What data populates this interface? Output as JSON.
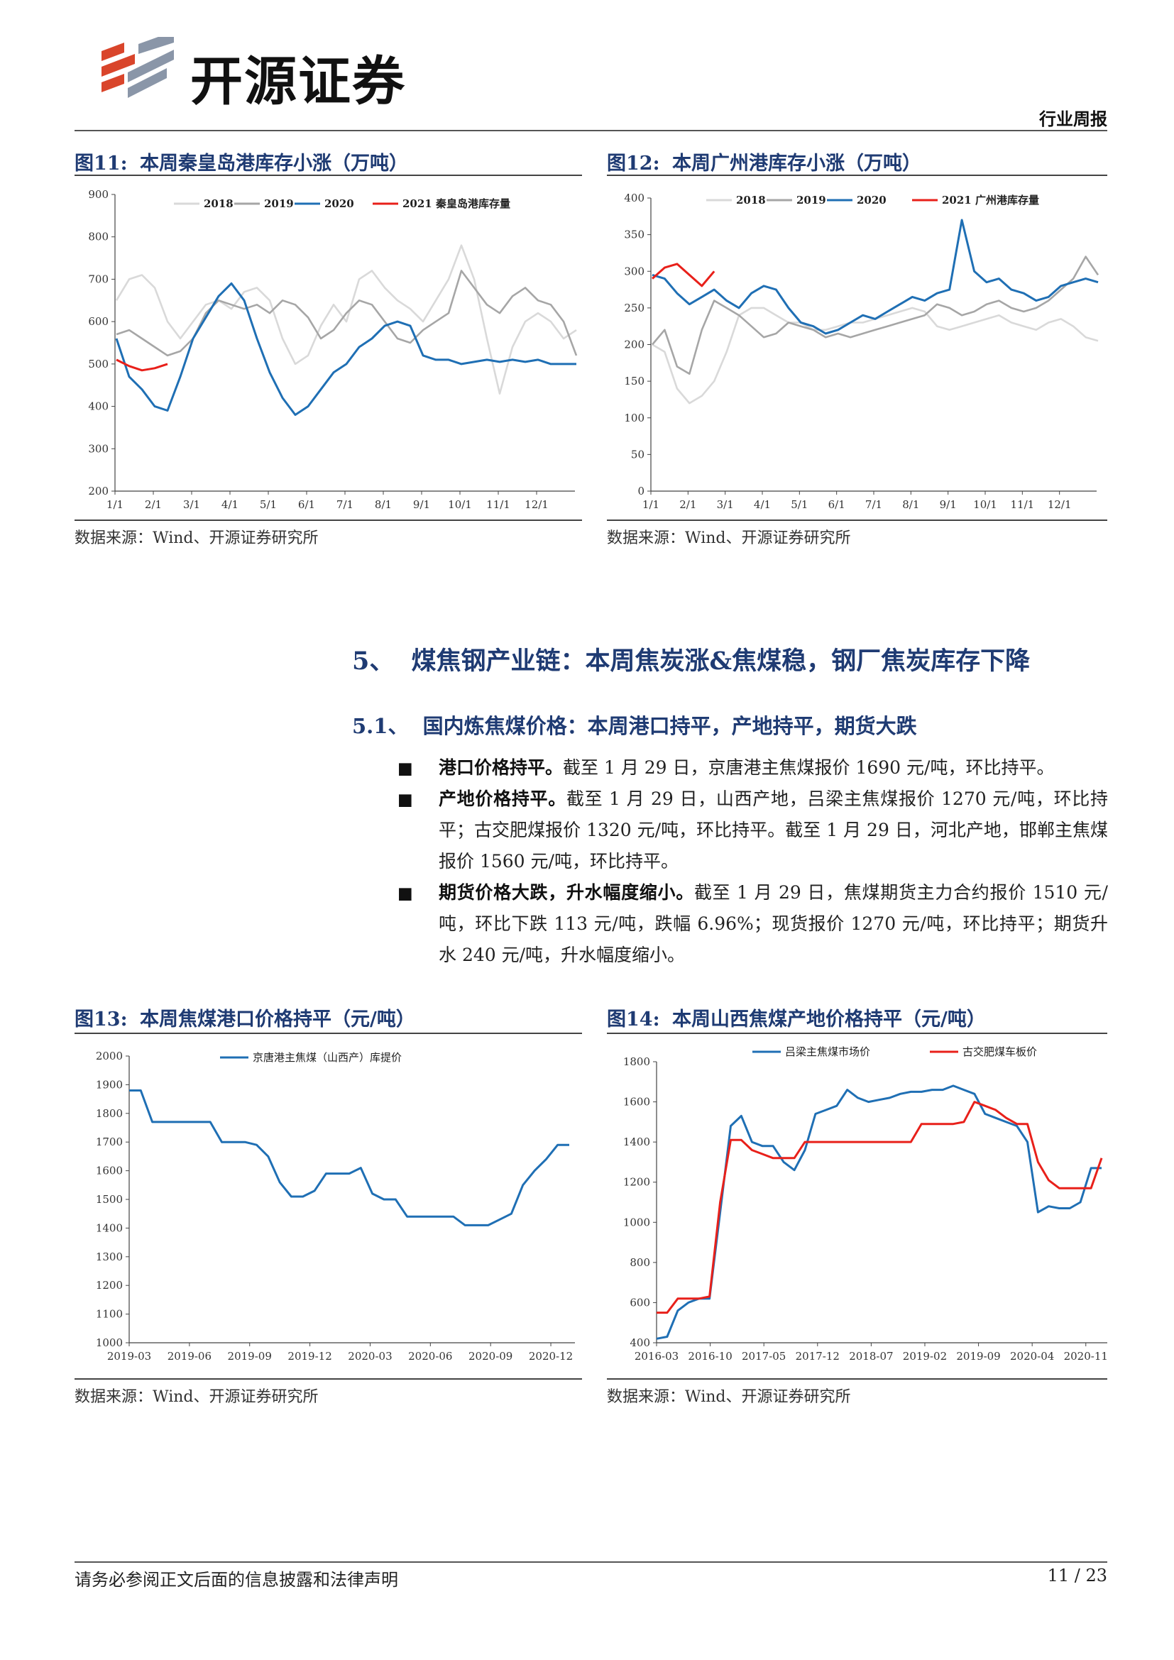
{
  "header": {
    "company": "开源证券",
    "report_type": "行业周报",
    "logo_colors": [
      "#d9452b",
      "#8a96a8"
    ]
  },
  "figures": [
    {
      "id": "fig11",
      "label": "图11:",
      "title": "本周秦皇岛港库存小涨（万吨）",
      "source": "数据来源：Wind、开源证券研究所",
      "chart_data": {
        "type": "line",
        "x_ticks": [
          "1/1",
          "2/1",
          "3/1",
          "4/1",
          "5/1",
          "6/1",
          "7/1",
          "8/1",
          "9/1",
          "10/1",
          "11/1",
          "12/1"
        ],
        "ylim": [
          200,
          900
        ],
        "y_ticks": [
          200,
          300,
          400,
          500,
          600,
          700,
          800,
          900
        ],
        "series": [
          {
            "name": "2018",
            "color": "#d9d9d9",
            "values": [
              650,
              700,
              710,
              680,
              600,
              560,
              600,
              640,
              650,
              630,
              670,
              680,
              650,
              560,
              500,
              520,
              590,
              640,
              600,
              700,
              720,
              680,
              650,
              630,
              600,
              650,
              700,
              780,
              700,
              560,
              430,
              540,
              600,
              620,
              600,
              560,
              580
            ]
          },
          {
            "name": "2019",
            "color": "#a6a6a6",
            "values": [
              570,
              580,
              560,
              540,
              520,
              530,
              560,
              620,
              650,
              640,
              630,
              640,
              620,
              650,
              640,
              610,
              560,
              580,
              620,
              650,
              640,
              600,
              560,
              550,
              580,
              600,
              620,
              720,
              680,
              640,
              620,
              660,
              680,
              650,
              640,
              600,
              520
            ]
          },
          {
            "name": "2020",
            "color": "#1f6fb4",
            "values": [
              560,
              470,
              440,
              400,
              390,
              470,
              560,
              610,
              660,
              690,
              650,
              560,
              480,
              420,
              380,
              400,
              440,
              480,
              500,
              540,
              560,
              590,
              600,
              590,
              520,
              510,
              510,
              500,
              505,
              510,
              505,
              510,
              505,
              510,
              500,
              500,
              500
            ]
          },
          {
            "name": "2021 秦皇岛港库存量",
            "color": "#e8201a",
            "values": [
              510,
              495,
              485,
              490,
              500
            ]
          }
        ]
      }
    },
    {
      "id": "fig12",
      "label": "图12:",
      "title": "本周广州港库存小涨（万吨）",
      "source": "数据来源：Wind、开源证券研究所",
      "chart_data": {
        "type": "line",
        "x_ticks": [
          "1/1",
          "2/1",
          "3/1",
          "4/1",
          "5/1",
          "6/1",
          "7/1",
          "8/1",
          "9/1",
          "10/1",
          "11/1",
          "12/1"
        ],
        "ylim": [
          0,
          400
        ],
        "y_ticks": [
          0,
          50,
          100,
          150,
          200,
          250,
          300,
          350,
          400
        ],
        "series": [
          {
            "name": "2018",
            "color": "#d9d9d9",
            "values": [
              200,
              190,
              140,
              120,
              130,
              150,
              190,
              240,
              250,
              250,
              240,
              230,
              230,
              220,
              220,
              225,
              230,
              230,
              235,
              240,
              245,
              250,
              245,
              225,
              220,
              225,
              230,
              235,
              240,
              230,
              225,
              220,
              230,
              235,
              225,
              210,
              205
            ]
          },
          {
            "name": "2019",
            "color": "#a6a6a6",
            "values": [
              200,
              220,
              170,
              160,
              220,
              260,
              250,
              240,
              225,
              210,
              215,
              230,
              225,
              220,
              210,
              215,
              210,
              215,
              220,
              225,
              230,
              235,
              240,
              255,
              250,
              240,
              245,
              255,
              260,
              250,
              245,
              250,
              260,
              275,
              290,
              320,
              295
            ]
          },
          {
            "name": "2020",
            "color": "#1f6fb4",
            "values": [
              295,
              290,
              270,
              255,
              265,
              275,
              260,
              250,
              270,
              280,
              275,
              250,
              230,
              225,
              215,
              220,
              230,
              240,
              235,
              245,
              255,
              265,
              260,
              270,
              275,
              370,
              300,
              285,
              290,
              275,
              270,
              260,
              265,
              280,
              285,
              290,
              285
            ]
          },
          {
            "name": "2021 广州港库存量",
            "color": "#e8201a",
            "values": [
              290,
              305,
              310,
              295,
              280,
              300
            ]
          }
        ]
      }
    },
    {
      "id": "fig13",
      "label": "图13:",
      "title": "本周焦煤港口价格持平（元/吨）",
      "source": "数据来源：Wind、开源证券研究所",
      "chart_data": {
        "type": "line",
        "x_ticks": [
          "2019-03",
          "2019-06",
          "2019-09",
          "2019-12",
          "2020-03",
          "2020-06",
          "2020-09",
          "2020-12"
        ],
        "ylim": [
          1000,
          2000
        ],
        "y_ticks": [
          1000,
          1100,
          1200,
          1300,
          1400,
          1500,
          1600,
          1700,
          1800,
          1900,
          2000
        ],
        "series": [
          {
            "name": "京唐港主焦煤（山西产）库提价",
            "color": "#1f6fb4",
            "values": [
              1880,
              1880,
              1770,
              1770,
              1770,
              1770,
              1770,
              1770,
              1700,
              1700,
              1700,
              1690,
              1650,
              1560,
              1510,
              1510,
              1530,
              1590,
              1590,
              1590,
              1610,
              1520,
              1500,
              1500,
              1440,
              1440,
              1440,
              1440,
              1440,
              1410,
              1410,
              1410,
              1430,
              1450,
              1550,
              1600,
              1640,
              1690,
              1690
            ]
          }
        ]
      }
    },
    {
      "id": "fig14",
      "label": "图14:",
      "title": "本周山西焦煤产地价格持平（元/吨）",
      "source": "数据来源：Wind、开源证券研究所",
      "chart_data": {
        "type": "line",
        "x_ticks": [
          "2016-03",
          "2016-10",
          "2017-05",
          "2017-12",
          "2018-07",
          "2019-02",
          "2019-09",
          "2020-04",
          "2020-11"
        ],
        "ylim": [
          400,
          1800
        ],
        "y_ticks": [
          400,
          600,
          800,
          1000,
          1200,
          1400,
          1600,
          1800
        ],
        "series": [
          {
            "name": "吕梁主焦煤市场价",
            "color": "#1f6fb4",
            "values": [
              420,
              430,
              560,
              600,
              620,
              620,
              1050,
              1480,
              1530,
              1400,
              1380,
              1380,
              1300,
              1260,
              1360,
              1540,
              1560,
              1580,
              1660,
              1620,
              1600,
              1610,
              1620,
              1640,
              1650,
              1650,
              1660,
              1660,
              1680,
              1660,
              1640,
              1540,
              1520,
              1500,
              1480,
              1400,
              1050,
              1080,
              1070,
              1070,
              1100,
              1270,
              1270
            ]
          },
          {
            "name": "古交肥煤车板价",
            "color": "#e8201a",
            "values": [
              550,
              550,
              620,
              620,
              620,
              630,
              1100,
              1410,
              1410,
              1360,
              1340,
              1320,
              1320,
              1320,
              1400,
              1400,
              1400,
              1400,
              1400,
              1400,
              1400,
              1400,
              1400,
              1400,
              1400,
              1490,
              1490,
              1490,
              1490,
              1500,
              1600,
              1580,
              1560,
              1520,
              1490,
              1490,
              1300,
              1210,
              1170,
              1170,
              1170,
              1170,
              1320
            ]
          }
        ]
      }
    }
  ],
  "section5": {
    "number": "5、",
    "title": "煤焦钢产业链：本周焦炭涨&焦煤稳，钢厂焦炭库存下降"
  },
  "section51": {
    "number": "5.1、",
    "title": "国内炼焦煤价格：本周港口持平，产地持平，期货大跌"
  },
  "bullets": [
    {
      "head": "港口价格持平。",
      "text": "截至 1 月 29 日，京唐港主焦煤报价 1690 元/吨，环比持平。"
    },
    {
      "head": "产地价格持平。",
      "text": "截至 1 月 29 日，山西产地，吕梁主焦煤报价 1270 元/吨，环比持平；古交肥煤报价 1320 元/吨，环比持平。截至 1 月 29 日，河北产地，邯郸主焦煤报价 1560 元/吨，环比持平。"
    },
    {
      "head": "期货价格大跌，升水幅度缩小。",
      "text": "截至 1 月 29 日，焦煤期货主力合约报价 1510 元/吨，环比下跌 113 元/吨，跌幅 6.96%；现货报价 1270 元/吨，环比持平；期货升水 240 元/吨，升水幅度缩小。"
    }
  ],
  "footer": {
    "disclaimer": "请务必参阅正文后面的信息披露和法律声明",
    "page": "11 / 23"
  }
}
